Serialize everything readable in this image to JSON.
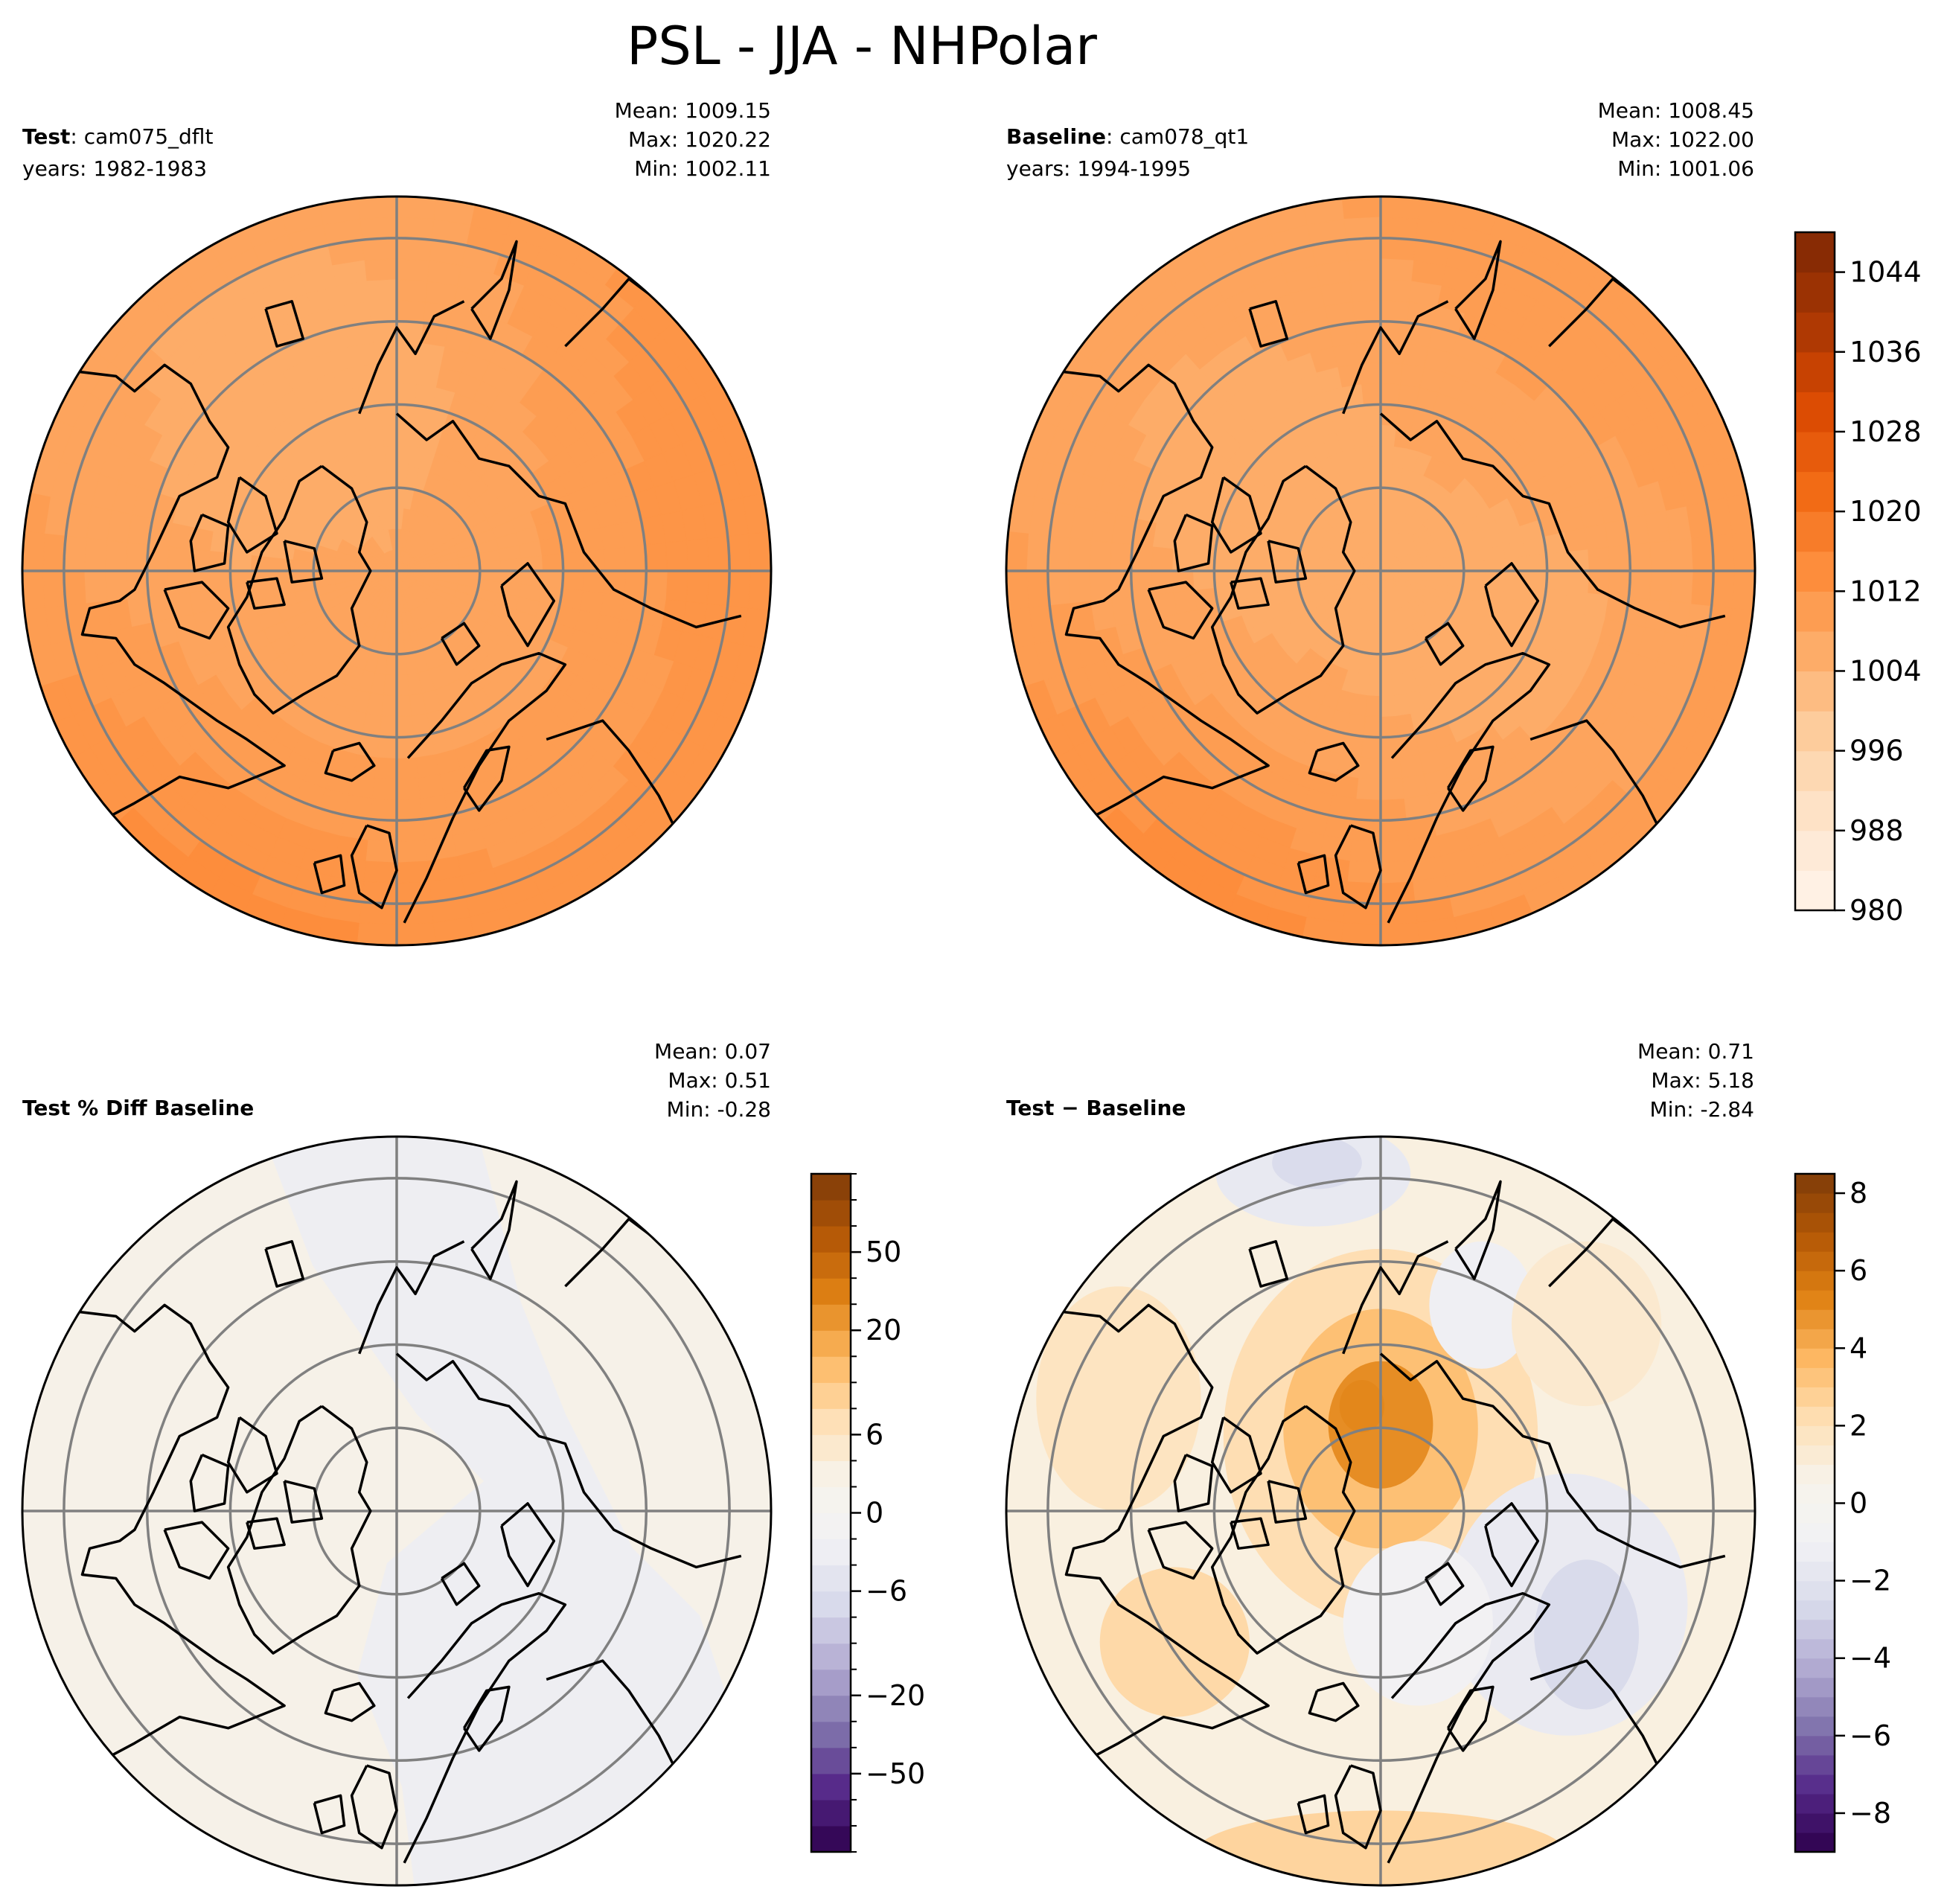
{
  "figure": {
    "title": "PSL - JJA - NHPolar"
  },
  "colors": {
    "oranges": [
      "#fff5eb",
      "#fee6ce",
      "#fdd0a2",
      "#fdae6b",
      "#fd8d3c",
      "#f16913",
      "#d94801",
      "#a63603",
      "#7f2704"
    ],
    "puor_neg": [
      "#2d004b",
      "#542788",
      "#8073ac",
      "#b2abd2",
      "#d8daeb",
      "#f1f1f4"
    ],
    "puor_pos": [
      "#f7f4ec",
      "#fee0b6",
      "#fdb863",
      "#e08214",
      "#b35806",
      "#7f3b08"
    ],
    "coast": "#000000",
    "grid": "#808080"
  },
  "panels": [
    {
      "id": "test",
      "header": {
        "bold": "Test",
        "sep": ": ",
        "name": "cam075_dflt",
        "years": "years: 1982-1983"
      },
      "stats": {
        "mean": "Mean: 1009.15",
        "max": "Max: 1020.22",
        "min": "Min: 1002.11"
      },
      "field": {
        "cmap": "oranges",
        "vmin": 980,
        "vmax": 1048,
        "base": 1007.5,
        "amp_lat": 7.0,
        "wave": 2.0,
        "pole_anom": 1.5,
        "blobs": [
          [
            -40,
            45,
            2.5,
            15
          ],
          [
            120,
            50,
            3,
            20
          ],
          [
            -160,
            65,
            -1.5,
            18
          ]
        ]
      }
    },
    {
      "id": "baseline",
      "header": {
        "bold": "Baseline",
        "sep": ": ",
        "name": "cam078_qt1",
        "years": "years: 1994-1995"
      },
      "stats": {
        "mean": "Mean: 1008.45",
        "max": "Max: 1022.00",
        "min": "Min: 1001.06"
      },
      "field": {
        "cmap": "oranges",
        "vmin": 980,
        "vmax": 1048,
        "base": 1006.8,
        "amp_lat": 7.5,
        "wave": 2.5,
        "pole_anom": 0.0,
        "blobs": [
          [
            -40,
            45,
            3,
            15
          ],
          [
            150,
            50,
            3,
            20
          ],
          [
            60,
            60,
            -2,
            20
          ]
        ]
      }
    },
    {
      "id": "pctdiff",
      "header": {
        "bold": "Test % Diff Baseline",
        "sep": "",
        "name": "",
        "years": ""
      },
      "stats": {
        "mean": "Mean:  0.07",
        "max": "Max:  0.51",
        "min": "Min: -0.28"
      }
    },
    {
      "id": "diff",
      "header": {
        "bold": "Test − Baseline",
        "sep": "",
        "name": "",
        "years": ""
      },
      "stats": {
        "mean": "Mean:  0.71",
        "max": "Max:  5.18",
        "min": "Min: -2.84"
      }
    }
  ],
  "colorbars": [
    {
      "id": "cbar-psl",
      "ticks": [
        "1044",
        "1036",
        "1028",
        "1020",
        "1012",
        "1004",
        "996",
        "988",
        "980"
      ]
    },
    {
      "id": "cbar-pct",
      "ticks": [
        "50",
        "20",
        "6",
        "0",
        "−6",
        "−20",
        "−50"
      ]
    },
    {
      "id": "cbar-diff",
      "ticks": [
        "8",
        "6",
        "4",
        "2",
        "0",
        "−2",
        "−4",
        "−6",
        "−8"
      ]
    }
  ],
  "chart_data": {
    "type": "contour-map",
    "projection": "north polar stereographic",
    "title": "PSL - JJA - NHPolar",
    "panels": [
      {
        "name": "Test: cam075_dflt",
        "years": "1982-1983",
        "mean": 1009.15,
        "max": 1020.22,
        "min": 1002.11,
        "units_range": [
          980,
          1048
        ]
      },
      {
        "name": "Baseline: cam078_qt1",
        "years": "1994-1995",
        "mean": 1008.45,
        "max": 1022.0,
        "min": 1001.06,
        "units_range": [
          980,
          1048
        ]
      },
      {
        "name": "Test % Diff Baseline",
        "mean": 0.07,
        "max": 0.51,
        "min": -0.28,
        "colorbar_ticks": [
          -50,
          -20,
          -6,
          0,
          6,
          20,
          50
        ]
      },
      {
        "name": "Test − Baseline",
        "mean": 0.71,
        "max": 5.18,
        "min": -2.84,
        "colorbar_ticks": [
          -8,
          -6,
          -4,
          -2,
          0,
          2,
          4,
          6,
          8
        ]
      }
    ],
    "colorbars": [
      {
        "range": [
          980,
          1048
        ],
        "ticks": [
          980,
          988,
          996,
          1004,
          1012,
          1020,
          1028,
          1036,
          1044
        ]
      },
      {
        "range": [
          -100,
          100
        ],
        "ticks": [
          -50,
          -20,
          -6,
          0,
          6,
          20,
          50
        ]
      },
      {
        "range": [
          -9,
          8.5
        ],
        "ticks": [
          -8,
          -6,
          -4,
          -2,
          0,
          2,
          4,
          6,
          8
        ]
      }
    ]
  }
}
